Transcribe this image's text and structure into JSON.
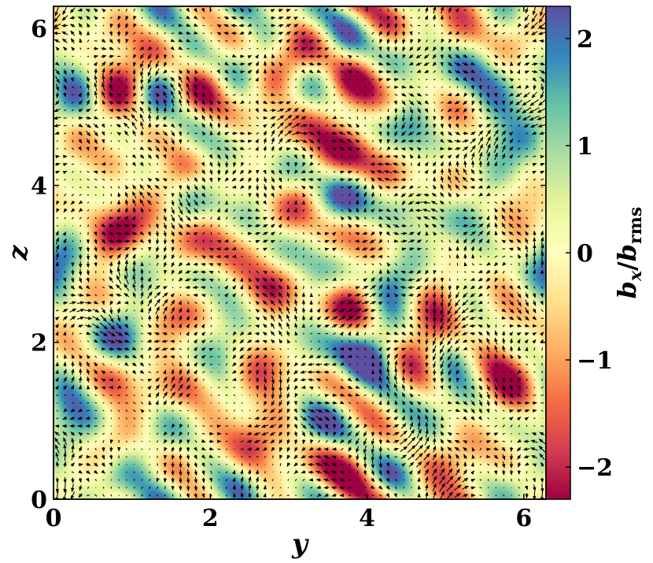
{
  "chart_data": {
    "type": "heatmap",
    "title": "",
    "xlabel": "y",
    "ylabel": "z",
    "xlim": [
      0,
      6.283
    ],
    "ylim": [
      0,
      6.283
    ],
    "x_ticks": [
      "0",
      "2",
      "4",
      "6"
    ],
    "y_ticks": [
      "0",
      "2",
      "4",
      "6"
    ],
    "field_seed": 7,
    "overlay": "arrow vector field of in-plane field components",
    "colorbar": {
      "label": "b_x/b_rms",
      "label_main": "b",
      "label_sub_x": "x",
      "label_sub_rms": "rms",
      "range": [
        -2.3,
        2.3
      ],
      "ticks": [
        "2",
        "1",
        "0",
        "−1",
        "−2"
      ],
      "colormap": "Spectral",
      "colors": [
        "#9e0142",
        "#d53e4f",
        "#f46d43",
        "#fdae61",
        "#fee08b",
        "#ffffbf",
        "#e6f598",
        "#abdda4",
        "#66c2a5",
        "#3288bd",
        "#5e4fa2"
      ]
    }
  }
}
